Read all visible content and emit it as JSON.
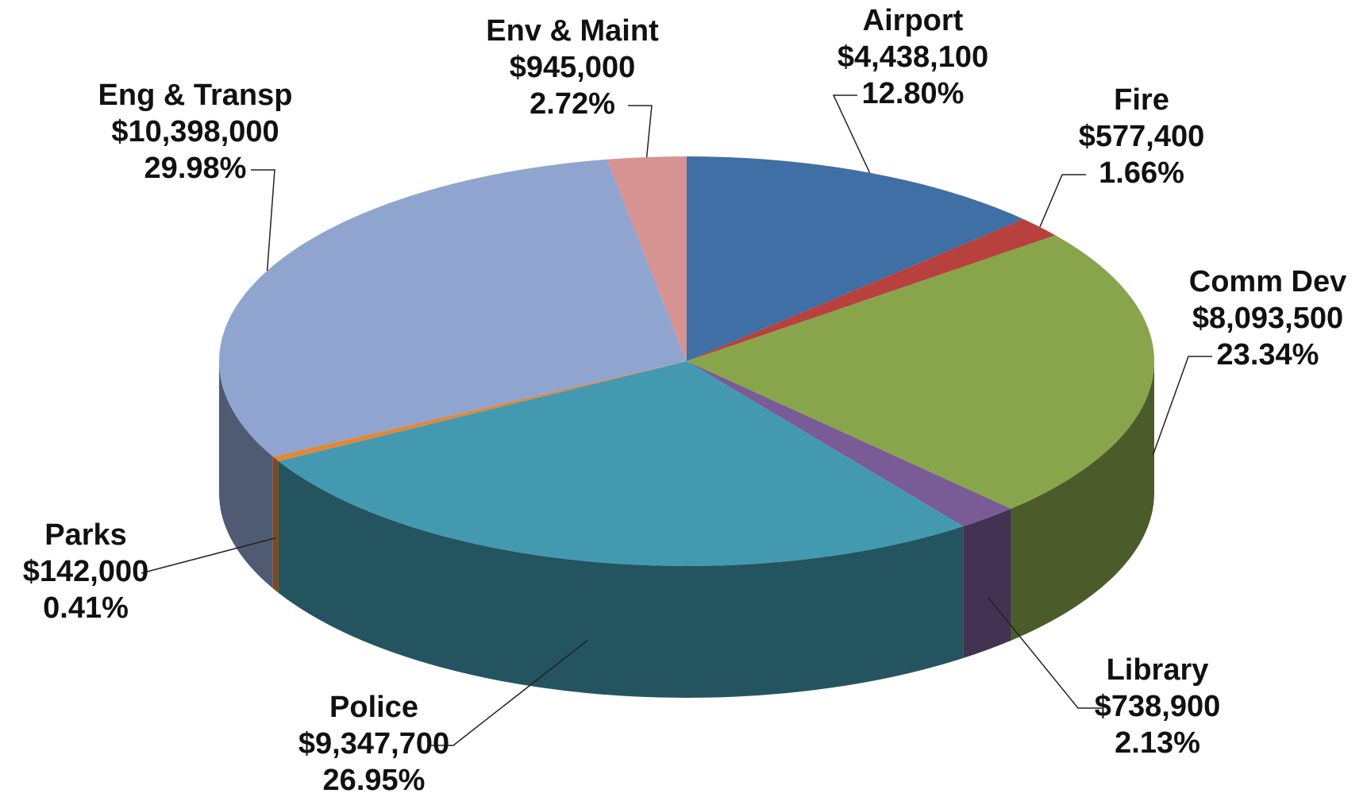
{
  "chart_data": {
    "type": "pie3d",
    "categories": [
      "Airport",
      "Fire",
      "Comm Dev",
      "Library",
      "Police",
      "Parks",
      "Eng & Transp",
      "Env & Maint"
    ],
    "values": [
      4438100,
      577400,
      8093500,
      738900,
      9347700,
      142000,
      10398000,
      945000
    ],
    "value_labels": [
      "$4,438,100",
      "$577,400",
      "$8,093,500",
      "$738,900",
      "$9,347,700",
      "$142,000",
      "$10,398,000",
      "$945,000"
    ],
    "percent_labels": [
      "12.80%",
      "1.66%",
      "23.34%",
      "2.13%",
      "26.95%",
      "0.41%",
      "29.98%",
      "2.72%"
    ],
    "colors": [
      "#3f6fa4",
      "#b8413e",
      "#88a54c",
      "#795b95",
      "#4399b0",
      "#e0883a",
      "#8fa5cf",
      "#d69391"
    ]
  }
}
